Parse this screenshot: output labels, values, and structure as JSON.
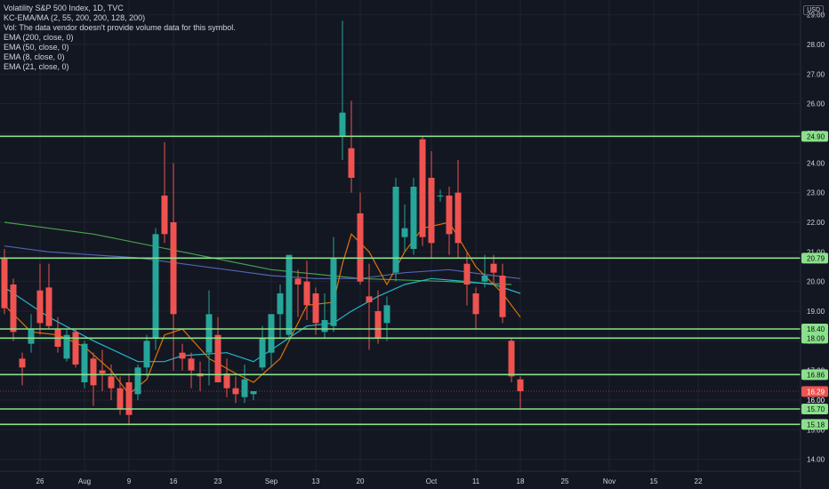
{
  "legend": {
    "title": "Volatility S&P 500 Index, 1D, TVC",
    "kc": "KC-EMA/MA (2, 55, 200, 200, 128, 200)",
    "vol": "Vol: The data vendor doesn't provide volume data for this symbol.",
    "ema200": "EMA (200, close, 0)",
    "ema50": "EMA (50, close, 0)",
    "ema8": "EMA (8, close, 0)",
    "ema21": "EMA (21, close, 0)"
  },
  "currency_badge": "USD",
  "colors": {
    "background": "#131722",
    "up": "#26a69a",
    "down": "#ef5350",
    "level_line": "#8be08b",
    "ema8": "#f57c00",
    "ema21": "#26c6da",
    "ema50": "#5c6bc0",
    "ema200": "#4caf50",
    "grid": "#1f2330"
  },
  "chart_data": {
    "type": "candlestick",
    "title": "Volatility S&P 500 Index, 1D, TVC",
    "ylim": [
      13.6,
      29.5
    ],
    "y_ticks": [
      14.0,
      15.0,
      16.0,
      17.0,
      18.0,
      19.0,
      20.0,
      21.0,
      22.0,
      23.0,
      24.0,
      25.0,
      26.0,
      27.0,
      28.0,
      29.0
    ],
    "x_tick_labels": [
      "26",
      "Aug",
      "9",
      "16",
      "23",
      "Sep",
      "13",
      "20",
      "Oct",
      "11",
      "18",
      "25",
      "Nov",
      "15",
      "22"
    ],
    "x_tick_positions": [
      4,
      9,
      14,
      19,
      24,
      30,
      35,
      40,
      48,
      53,
      58,
      63,
      68,
      73,
      78
    ],
    "candles": [
      {
        "o": 20.8,
        "h": 21.1,
        "l": 18.9,
        "c": 19.1
      },
      {
        "o": 19.9,
        "h": 20.1,
        "l": 18.0,
        "c": 18.3
      },
      {
        "o": 17.4,
        "h": 17.6,
        "l": 16.5,
        "c": 17.1
      },
      {
        "o": 17.9,
        "h": 18.9,
        "l": 17.6,
        "c": 18.4
      },
      {
        "o": 19.7,
        "h": 20.6,
        "l": 18.2,
        "c": 18.6
      },
      {
        "o": 19.8,
        "h": 20.6,
        "l": 18.4,
        "c": 18.5
      },
      {
        "o": 18.4,
        "h": 18.8,
        "l": 17.6,
        "c": 17.8
      },
      {
        "o": 17.4,
        "h": 18.4,
        "l": 17.3,
        "c": 18.2
      },
      {
        "o": 18.3,
        "h": 18.4,
        "l": 17.1,
        "c": 17.2
      },
      {
        "o": 16.6,
        "h": 18.0,
        "l": 16.4,
        "c": 17.9
      },
      {
        "o": 17.4,
        "h": 17.6,
        "l": 15.8,
        "c": 16.5
      },
      {
        "o": 17.0,
        "h": 17.7,
        "l": 16.3,
        "c": 16.9
      },
      {
        "o": 16.8,
        "h": 17.2,
        "l": 16.0,
        "c": 16.4
      },
      {
        "o": 16.4,
        "h": 16.8,
        "l": 15.5,
        "c": 15.7
      },
      {
        "o": 16.6,
        "h": 16.9,
        "l": 15.2,
        "c": 15.5
      },
      {
        "o": 16.2,
        "h": 17.2,
        "l": 16.0,
        "c": 17.1
      },
      {
        "o": 17.1,
        "h": 18.2,
        "l": 16.8,
        "c": 18.0
      },
      {
        "o": 18.1,
        "h": 21.8,
        "l": 17.7,
        "c": 21.6
      },
      {
        "o": 22.9,
        "h": 24.7,
        "l": 21.3,
        "c": 21.6
      },
      {
        "o": 22.0,
        "h": 24.0,
        "l": 17.0,
        "c": 18.9
      },
      {
        "o": 17.6,
        "h": 17.9,
        "l": 17.0,
        "c": 17.4
      },
      {
        "o": 17.4,
        "h": 17.6,
        "l": 16.4,
        "c": 17.0
      },
      {
        "o": 16.9,
        "h": 17.3,
        "l": 16.3,
        "c": 16.8
      },
      {
        "o": 17.6,
        "h": 19.7,
        "l": 16.5,
        "c": 18.9
      },
      {
        "o": 18.2,
        "h": 18.8,
        "l": 16.6,
        "c": 16.6
      },
      {
        "o": 16.9,
        "h": 17.4,
        "l": 16.1,
        "c": 16.4
      },
      {
        "o": 16.4,
        "h": 16.8,
        "l": 15.9,
        "c": 16.2
      },
      {
        "o": 16.1,
        "h": 17.2,
        "l": 15.9,
        "c": 16.7
      },
      {
        "o": 16.2,
        "h": 16.3,
        "l": 16.0,
        "c": 16.3
      },
      {
        "o": 17.1,
        "h": 18.5,
        "l": 17.0,
        "c": 18.1
      },
      {
        "o": 17.6,
        "h": 18.9,
        "l": 17.1,
        "c": 18.9
      },
      {
        "o": 18.9,
        "h": 19.9,
        "l": 18.1,
        "c": 19.6
      },
      {
        "o": 18.2,
        "h": 20.9,
        "l": 18.0,
        "c": 20.9
      },
      {
        "o": 20.1,
        "h": 20.4,
        "l": 18.8,
        "c": 19.9
      },
      {
        "o": 20.0,
        "h": 20.7,
        "l": 18.7,
        "c": 19.2
      },
      {
        "o": 19.6,
        "h": 19.8,
        "l": 18.2,
        "c": 18.6
      },
      {
        "o": 18.3,
        "h": 19.6,
        "l": 18.1,
        "c": 18.7
      },
      {
        "o": 18.5,
        "h": 21.5,
        "l": 18.3,
        "c": 20.8
      },
      {
        "o": 24.9,
        "h": 28.8,
        "l": 24.1,
        "c": 25.7
      },
      {
        "o": 24.5,
        "h": 26.1,
        "l": 23.0,
        "c": 23.5
      },
      {
        "o": 22.3,
        "h": 23.0,
        "l": 19.9,
        "c": 20.0
      },
      {
        "o": 19.5,
        "h": 20.6,
        "l": 17.7,
        "c": 19.3
      },
      {
        "o": 19.0,
        "h": 19.7,
        "l": 17.9,
        "c": 18.1
      },
      {
        "o": 18.6,
        "h": 19.5,
        "l": 18.0,
        "c": 19.2
      },
      {
        "o": 20.3,
        "h": 23.5,
        "l": 20.0,
        "c": 23.2
      },
      {
        "o": 21.5,
        "h": 22.6,
        "l": 21.0,
        "c": 21.8
      },
      {
        "o": 21.1,
        "h": 23.5,
        "l": 20.9,
        "c": 23.2
      },
      {
        "o": 24.8,
        "h": 24.9,
        "l": 21.2,
        "c": 21.5
      },
      {
        "o": 23.5,
        "h": 24.4,
        "l": 20.8,
        "c": 21.3
      },
      {
        "o": 22.9,
        "h": 23.1,
        "l": 22.7,
        "c": 22.9
      },
      {
        "o": 22.9,
        "h": 23.2,
        "l": 20.9,
        "c": 21.6
      },
      {
        "o": 23.0,
        "h": 24.1,
        "l": 20.8,
        "c": 21.3
      },
      {
        "o": 20.6,
        "h": 21.0,
        "l": 19.2,
        "c": 19.9
      },
      {
        "o": 19.6,
        "h": 19.8,
        "l": 18.4,
        "c": 18.9
      },
      {
        "o": 20.0,
        "h": 20.9,
        "l": 19.8,
        "c": 20.2
      },
      {
        "o": 20.6,
        "h": 20.9,
        "l": 19.9,
        "c": 20.3
      },
      {
        "o": 20.2,
        "h": 20.6,
        "l": 18.6,
        "c": 18.8
      },
      {
        "o": 18.0,
        "h": 18.1,
        "l": 16.6,
        "c": 16.8
      },
      {
        "o": 16.7,
        "h": 16.8,
        "l": 15.7,
        "c": 16.3
      }
    ],
    "ema_lines": [
      {
        "name": "EMA (200, close, 0)",
        "color": "#4caf50",
        "points": [
          [
            0,
            22.0
          ],
          [
            10,
            21.6
          ],
          [
            20,
            21.0
          ],
          [
            30,
            20.4
          ],
          [
            40,
            20.1
          ],
          [
            50,
            20.0
          ],
          [
            57,
            19.9
          ]
        ]
      },
      {
        "name": "EMA (50, close, 0)",
        "color": "#5c6bc0",
        "points": [
          [
            0,
            21.2
          ],
          [
            5,
            21.0
          ],
          [
            10,
            20.9
          ],
          [
            15,
            20.8
          ],
          [
            20,
            20.6
          ],
          [
            25,
            20.4
          ],
          [
            30,
            20.2
          ],
          [
            35,
            20.1
          ],
          [
            40,
            20.1
          ],
          [
            45,
            20.3
          ],
          [
            50,
            20.4
          ],
          [
            55,
            20.2
          ],
          [
            58,
            20.1
          ]
        ]
      },
      {
        "name": "EMA (21, close, 0)",
        "color": "#26c6da",
        "points": [
          [
            0,
            19.8
          ],
          [
            5,
            18.8
          ],
          [
            10,
            18.0
          ],
          [
            15,
            17.3
          ],
          [
            18,
            17.3
          ],
          [
            20,
            17.5
          ],
          [
            25,
            17.6
          ],
          [
            28,
            17.3
          ],
          [
            31,
            17.9
          ],
          [
            34,
            18.5
          ],
          [
            37,
            18.6
          ],
          [
            39,
            19.0
          ],
          [
            42,
            19.5
          ],
          [
            45,
            19.9
          ],
          [
            48,
            20.1
          ],
          [
            52,
            20.0
          ],
          [
            55,
            19.9
          ],
          [
            58,
            19.6
          ]
        ]
      },
      {
        "name": "EMA (8, close, 0)",
        "color": "#f57c00",
        "points": [
          [
            0,
            19.2
          ],
          [
            3,
            18.3
          ],
          [
            6,
            18.2
          ],
          [
            9,
            17.8
          ],
          [
            12,
            17.0
          ],
          [
            14,
            16.2
          ],
          [
            16,
            16.7
          ],
          [
            18,
            18.2
          ],
          [
            20,
            18.4
          ],
          [
            23,
            17.4
          ],
          [
            26,
            16.9
          ],
          [
            28,
            16.6
          ],
          [
            31,
            17.4
          ],
          [
            34,
            19.2
          ],
          [
            37,
            19.3
          ],
          [
            38,
            20.6
          ],
          [
            39,
            21.6
          ],
          [
            41,
            21.0
          ],
          [
            43,
            19.9
          ],
          [
            45,
            21.0
          ],
          [
            47,
            21.8
          ],
          [
            50,
            22.0
          ],
          [
            53,
            20.5
          ],
          [
            56,
            19.6
          ],
          [
            58,
            18.8
          ]
        ]
      }
    ],
    "horizontal_levels": [
      24.9,
      20.79,
      18.4,
      18.09,
      16.86,
      15.7,
      15.18
    ],
    "price_tags": [
      {
        "label": "24.90",
        "value": 24.9,
        "color": "#8be08b"
      },
      {
        "label": "20.79",
        "value": 20.79,
        "color": "#8be08b"
      },
      {
        "label": "18.40",
        "value": 18.4,
        "color": "#8be08b"
      },
      {
        "label": "18.09",
        "value": 18.09,
        "color": "#8be08b"
      },
      {
        "label": "16.86",
        "value": 16.86,
        "color": "#8be08b"
      },
      {
        "label": "16.29",
        "value": 16.29,
        "color": "#ef5350"
      },
      {
        "label": "16.00",
        "value": 16.0,
        "color": "none"
      },
      {
        "label": "15.70",
        "value": 15.7,
        "color": "#8be08b"
      },
      {
        "label": "15.18",
        "value": 15.18,
        "color": "#8be08b"
      }
    ],
    "grid": true
  }
}
